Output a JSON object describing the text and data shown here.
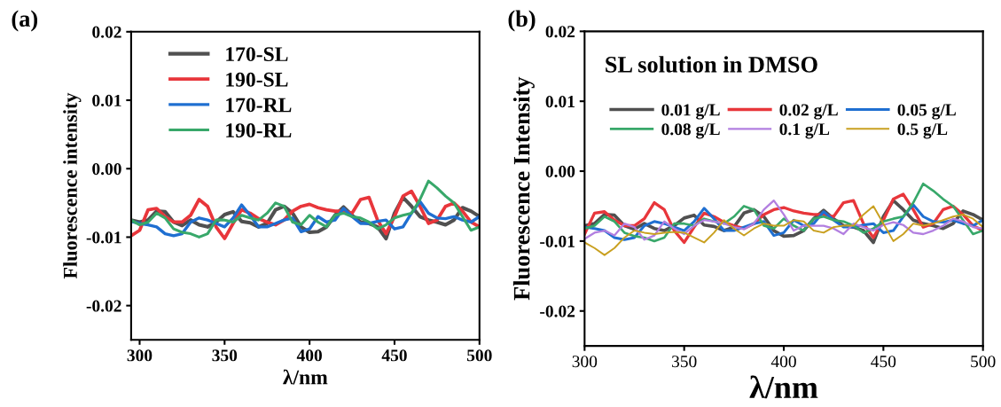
{
  "chart_data": [
    {
      "type": "line",
      "xlabel": "λ/nm",
      "ylabel": "Fluorescence intensity",
      "annotations": [
        "(a)"
      ],
      "legend": "top left",
      "grid": false,
      "xlim": [
        295,
        500
      ],
      "xticks": [
        300,
        350,
        400,
        450,
        500
      ],
      "ylim": [
        -0.025,
        0.02
      ],
      "yticks": [
        {
          "value": -0.02,
          "label": "-0.02"
        },
        {
          "value": -0.01,
          "label": "-0.01"
        },
        {
          "value": 0.0,
          "label": "0.00"
        },
        {
          "value": 0.01,
          "label": "0.01"
        },
        {
          "value": 0.02,
          "label": "0.02"
        }
      ],
      "x": [
        295,
        300,
        305,
        310,
        315,
        320,
        325,
        330,
        335,
        340,
        345,
        350,
        355,
        360,
        365,
        370,
        375,
        380,
        385,
        390,
        395,
        400,
        405,
        410,
        415,
        420,
        425,
        430,
        435,
        440,
        445,
        450,
        455,
        460,
        465,
        470,
        475,
        480,
        485,
        490,
        495,
        500
      ],
      "series": [
        {
          "name": "170-SL",
          "color": "#505050",
          "values": [
            -0.0075,
            -0.0078,
            -0.0075,
            -0.0062,
            -0.0063,
            -0.0078,
            -0.0083,
            -0.0075,
            -0.0082,
            -0.0085,
            -0.0078,
            -0.0067,
            -0.0063,
            -0.0077,
            -0.0079,
            -0.0085,
            -0.008,
            -0.006,
            -0.0055,
            -0.0065,
            -0.0085,
            -0.0093,
            -0.0092,
            -0.0085,
            -0.0068,
            -0.0056,
            -0.0068,
            -0.0078,
            -0.008,
            -0.0085,
            -0.0102,
            -0.0065,
            -0.0042,
            -0.0055,
            -0.007,
            -0.0075,
            -0.0078,
            -0.0082,
            -0.0075,
            -0.0057,
            -0.0062,
            -0.007
          ]
        },
        {
          "name": "190-SL",
          "color": "#e8363b",
          "values": [
            -0.0098,
            -0.009,
            -0.006,
            -0.0058,
            -0.007,
            -0.0078,
            -0.0078,
            -0.0068,
            -0.0045,
            -0.0055,
            -0.0085,
            -0.0102,
            -0.008,
            -0.006,
            -0.0065,
            -0.0073,
            -0.0078,
            -0.0082,
            -0.0075,
            -0.0062,
            -0.0055,
            -0.0052,
            -0.0057,
            -0.006,
            -0.0062,
            -0.0062,
            -0.0065,
            -0.0045,
            -0.0042,
            -0.0075,
            -0.0095,
            -0.007,
            -0.004,
            -0.0033,
            -0.0055,
            -0.008,
            -0.0075,
            -0.0055,
            -0.005,
            -0.0062,
            -0.0078,
            -0.0085
          ]
        },
        {
          "name": "170-RL",
          "color": "#1f6fd1",
          "values": [
            -0.0077,
            -0.008,
            -0.0082,
            -0.0085,
            -0.0095,
            -0.0098,
            -0.0095,
            -0.0078,
            -0.0072,
            -0.0075,
            -0.008,
            -0.0085,
            -0.0072,
            -0.0053,
            -0.0068,
            -0.0085,
            -0.0085,
            -0.008,
            -0.0075,
            -0.0072,
            -0.0092,
            -0.0088,
            -0.007,
            -0.0078,
            -0.0075,
            -0.0058,
            -0.007,
            -0.008,
            -0.008,
            -0.0077,
            -0.0075,
            -0.0088,
            -0.0085,
            -0.0065,
            -0.0048,
            -0.0065,
            -0.0072,
            -0.0073,
            -0.007,
            -0.0075,
            -0.0078,
            -0.007
          ]
        },
        {
          "name": "190-RL",
          "color": "#38a86a",
          "values": [
            -0.0075,
            -0.0082,
            -0.0078,
            -0.0065,
            -0.0072,
            -0.0088,
            -0.0093,
            -0.0095,
            -0.01,
            -0.0095,
            -0.0075,
            -0.0075,
            -0.0078,
            -0.0068,
            -0.0072,
            -0.0075,
            -0.0065,
            -0.005,
            -0.0055,
            -0.0078,
            -0.0082,
            -0.0068,
            -0.0078,
            -0.0085,
            -0.0068,
            -0.0065,
            -0.007,
            -0.0072,
            -0.0078,
            -0.0088,
            -0.0082,
            -0.0072,
            -0.0068,
            -0.0065,
            -0.0045,
            -0.0018,
            -0.0028,
            -0.004,
            -0.005,
            -0.007,
            -0.009,
            -0.0085
          ]
        }
      ]
    },
    {
      "type": "line",
      "xlabel": "λ/nm",
      "ylabel": "Fluorescence Intensity",
      "annotations": [
        "(b)",
        "SL solution in DMSO"
      ],
      "legend": "top",
      "grid": false,
      "xlim": [
        300,
        500
      ],
      "xticks": [
        300,
        350,
        400,
        450,
        500
      ],
      "ylim": [
        -0.025,
        0.02
      ],
      "yticks": [
        {
          "value": -0.02,
          "label": "-0.02"
        },
        {
          "value": -0.01,
          "label": "-0.01"
        },
        {
          "value": 0.0,
          "label": "0.00"
        },
        {
          "value": 0.01,
          "label": "0.01"
        },
        {
          "value": 0.02,
          "label": "0.02"
        }
      ],
      "x": [
        300,
        305,
        310,
        315,
        320,
        325,
        330,
        335,
        340,
        345,
        350,
        355,
        360,
        365,
        370,
        375,
        380,
        385,
        390,
        395,
        400,
        405,
        410,
        415,
        420,
        425,
        430,
        435,
        440,
        445,
        450,
        455,
        460,
        465,
        470,
        475,
        480,
        485,
        490,
        495,
        500
      ],
      "series": [
        {
          "name": "0.01 g/L",
          "color": "#505050",
          "values": [
            -0.0078,
            -0.0075,
            -0.0062,
            -0.0063,
            -0.0078,
            -0.0083,
            -0.0075,
            -0.0082,
            -0.0085,
            -0.0078,
            -0.0067,
            -0.0063,
            -0.0077,
            -0.0079,
            -0.0085,
            -0.008,
            -0.006,
            -0.0055,
            -0.0065,
            -0.0085,
            -0.0093,
            -0.0092,
            -0.0085,
            -0.0068,
            -0.0056,
            -0.0068,
            -0.0078,
            -0.008,
            -0.0085,
            -0.0102,
            -0.0065,
            -0.0042,
            -0.0055,
            -0.007,
            -0.0075,
            -0.0078,
            -0.0082,
            -0.0075,
            -0.0057,
            -0.0062,
            -0.007
          ]
        },
        {
          "name": "0.02 g/L",
          "color": "#e8363b",
          "values": [
            -0.009,
            -0.006,
            -0.0058,
            -0.007,
            -0.0078,
            -0.0078,
            -0.0068,
            -0.0045,
            -0.0055,
            -0.0085,
            -0.0102,
            -0.008,
            -0.006,
            -0.0065,
            -0.0073,
            -0.0078,
            -0.0082,
            -0.0075,
            -0.0062,
            -0.0055,
            -0.0052,
            -0.0057,
            -0.006,
            -0.0062,
            -0.0062,
            -0.0065,
            -0.0045,
            -0.0042,
            -0.0075,
            -0.0095,
            -0.007,
            -0.004,
            -0.0033,
            -0.0055,
            -0.008,
            -0.0075,
            -0.0055,
            -0.005,
            -0.0062,
            -0.0078,
            -0.0085
          ]
        },
        {
          "name": "0.05 g/L",
          "color": "#1f6fd1",
          "values": [
            -0.008,
            -0.0082,
            -0.0085,
            -0.0095,
            -0.0098,
            -0.0095,
            -0.0078,
            -0.0072,
            -0.0075,
            -0.008,
            -0.0085,
            -0.0072,
            -0.0053,
            -0.0068,
            -0.0085,
            -0.0085,
            -0.008,
            -0.0075,
            -0.0072,
            -0.0092,
            -0.0088,
            -0.007,
            -0.0078,
            -0.0075,
            -0.0058,
            -0.007,
            -0.008,
            -0.008,
            -0.0077,
            -0.0075,
            -0.0088,
            -0.0085,
            -0.0065,
            -0.0048,
            -0.0065,
            -0.0072,
            -0.0073,
            -0.007,
            -0.0075,
            -0.0078,
            -0.007
          ]
        },
        {
          "name": "0.08 g/L",
          "color": "#38a86a",
          "values": [
            -0.0082,
            -0.0078,
            -0.0065,
            -0.0072,
            -0.0088,
            -0.0093,
            -0.0095,
            -0.01,
            -0.0095,
            -0.0075,
            -0.0075,
            -0.0078,
            -0.0068,
            -0.0072,
            -0.0075,
            -0.0065,
            -0.005,
            -0.0055,
            -0.0078,
            -0.0082,
            -0.0068,
            -0.0078,
            -0.0085,
            -0.0068,
            -0.0065,
            -0.007,
            -0.0072,
            -0.0078,
            -0.0088,
            -0.0082,
            -0.0072,
            -0.0068,
            -0.0065,
            -0.0045,
            -0.0018,
            -0.0028,
            -0.004,
            -0.005,
            -0.007,
            -0.009,
            -0.0085
          ]
        },
        {
          "name": "0.1 g/L",
          "color": "#b27fe0",
          "values": [
            -0.0097,
            -0.0088,
            -0.0085,
            -0.0092,
            -0.0075,
            -0.008,
            -0.0098,
            -0.0092,
            -0.0072,
            -0.0082,
            -0.009,
            -0.0078,
            -0.007,
            -0.0072,
            -0.0075,
            -0.008,
            -0.0083,
            -0.0075,
            -0.0055,
            -0.0042,
            -0.0062,
            -0.0085,
            -0.0078,
            -0.0078,
            -0.0078,
            -0.0082,
            -0.009,
            -0.0075,
            -0.008,
            -0.0085,
            -0.0077,
            -0.0073,
            -0.0077,
            -0.0088,
            -0.009,
            -0.0085,
            -0.0078,
            -0.0068,
            -0.0072,
            -0.008,
            -0.0082
          ]
        },
        {
          "name": "0.5 g/L",
          "color": "#c9a020",
          "values": [
            -0.0102,
            -0.011,
            -0.012,
            -0.011,
            -0.0095,
            -0.0085,
            -0.0088,
            -0.009,
            -0.0088,
            -0.0087,
            -0.0088,
            -0.0095,
            -0.0102,
            -0.0088,
            -0.007,
            -0.0082,
            -0.0092,
            -0.0082,
            -0.0075,
            -0.0078,
            -0.0078,
            -0.007,
            -0.0072,
            -0.0085,
            -0.0088,
            -0.008,
            -0.0078,
            -0.0078,
            -0.0062,
            -0.005,
            -0.0075,
            -0.01,
            -0.009,
            -0.0075,
            -0.0078,
            -0.0075,
            -0.007,
            -0.0065,
            -0.0062,
            -0.0068,
            -0.008
          ]
        }
      ]
    }
  ]
}
